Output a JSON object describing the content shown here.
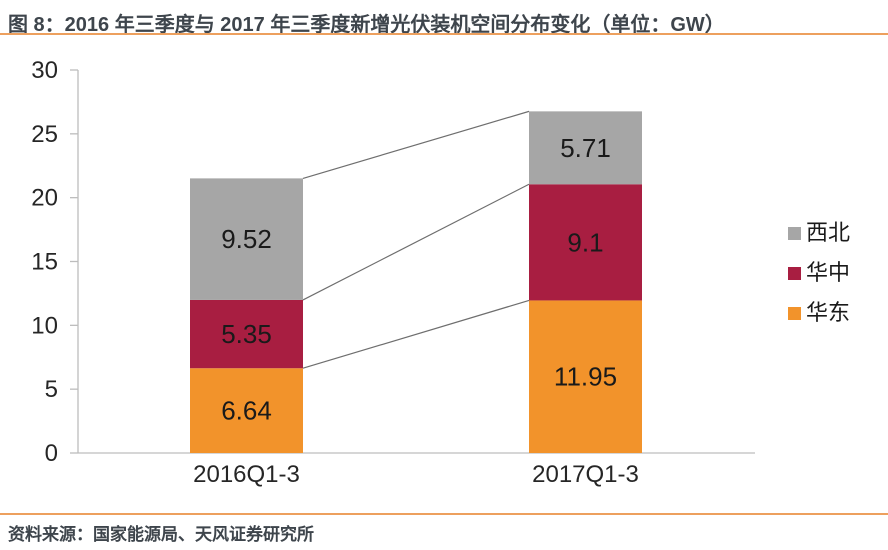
{
  "figure": {
    "title": "图 8：2016 年三季度与 2017 年三季度新增光伏装机空间分布变化（单位：GW）",
    "source": "资料来源：国家能源局、天风证券研究所",
    "accent_rule_color": "#EDA05E"
  },
  "chart_data": {
    "type": "bar",
    "stacked": true,
    "title": "2016 年三季度与 2017 年三季度新增光伏装机空间分布变化",
    "unit": "GW",
    "categories": [
      "2016Q1-3",
      "2017Q1-3"
    ],
    "series": [
      {
        "name": "华东",
        "color": "#F2932B",
        "values": [
          6.64,
          11.95
        ]
      },
      {
        "name": "华中",
        "color": "#A81E41",
        "values": [
          5.35,
          9.1
        ]
      },
      {
        "name": "西北",
        "color": "#A6A6A6",
        "values": [
          9.52,
          5.71
        ]
      }
    ],
    "value_labels": [
      [
        "6.64",
        "5.35",
        "9.52"
      ],
      [
        "11.95",
        "9.1",
        "5.71"
      ]
    ],
    "totals": [
      21.51,
      26.76
    ],
    "ylim": [
      0,
      30
    ],
    "yticks": [
      0,
      5,
      10,
      15,
      20,
      25,
      30
    ],
    "grid": false,
    "legend": {
      "position": "right",
      "order": [
        "西北",
        "华中",
        "华东"
      ]
    },
    "connectors": true,
    "axis_color": "#BDBDBD",
    "connector_color": "#6E6E6E",
    "text_color": "#262626",
    "label_color": "#1A1A1A"
  }
}
